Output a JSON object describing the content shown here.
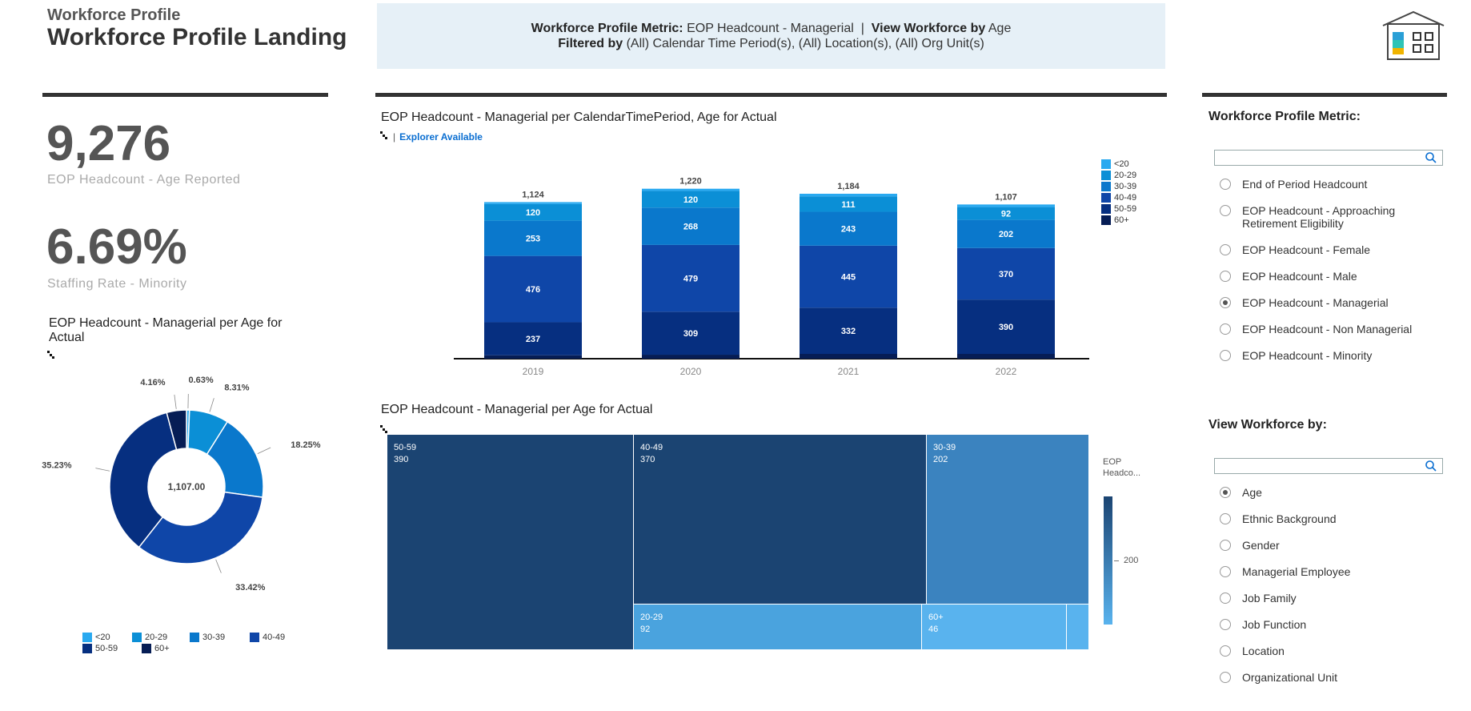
{
  "header": {
    "app_name": "Workforce Profile",
    "page_title": "Workforce Profile Landing",
    "metric_label": "Workforce Profile Metric:",
    "metric_value": "EOP Headcount - Managerial",
    "separator": "|",
    "view_label": "View Workforce by",
    "view_value": "Age",
    "filter_label": "Filtered by",
    "filter_value": "(All) Calendar Time Period(s), (All) Location(s), (All) Org Unit(s)"
  },
  "kpis": [
    {
      "value": "9,276",
      "label": "EOP Headcount - Age Reported"
    },
    {
      "value": "6.69%",
      "label": "Staffing Rate - Minority"
    }
  ],
  "colors": {
    "lt20": "#29a9f0",
    "a20_29": "#0b8fd6",
    "a30_39": "#0a78cc",
    "a40_49": "#0f46a8",
    "a50_59": "#062f80",
    "a60p": "#061d55",
    "treemap_dark": "#1b4472",
    "treemap_mid": "#3b83bf",
    "treemap_light": "#4aa3de",
    "treemap_lightest": "#59b3ee"
  },
  "donut": {
    "title": "EOP Headcount - Managerial per Age for Actual",
    "center_label": "1,107.00",
    "legend": [
      "<20",
      "20-29",
      "30-39",
      "40-49",
      "50-59",
      "60+"
    ]
  },
  "bar_chart": {
    "title": "EOP Headcount - Managerial per CalendarTimePeriod, Age for Actual",
    "explorer_separator": "|",
    "explorer_label": "Explorer Available",
    "legend": [
      "<20",
      "20-29",
      "30-39",
      "40-49",
      "50-59",
      "60+"
    ]
  },
  "treemap": {
    "title": "EOP Headcount - Managerial per Age for Actual",
    "legend_title": "EOP Headco...",
    "legend_tick": "200",
    "cells": [
      {
        "label": "50-59",
        "value": "390"
      },
      {
        "label": "40-49",
        "value": "370"
      },
      {
        "label": "30-39",
        "value": "202"
      },
      {
        "label": "20-29",
        "value": "92"
      },
      {
        "label": "60+",
        "value": "46"
      }
    ]
  },
  "right_panel": {
    "metric_label": "Workforce Profile Metric:",
    "metric_options": [
      {
        "label": "End of Period Headcount",
        "selected": false
      },
      {
        "label": "EOP Headcount - Approaching Retirement Eligibility",
        "selected": false
      },
      {
        "label": "EOP Headcount - Female",
        "selected": false
      },
      {
        "label": "EOP Headcount - Male",
        "selected": false
      },
      {
        "label": "EOP Headcount - Managerial",
        "selected": true
      },
      {
        "label": "EOP Headcount - Non Managerial",
        "selected": false
      },
      {
        "label": "EOP Headcount - Minority",
        "selected": false
      }
    ],
    "view_label": "View Workforce by:",
    "view_options": [
      {
        "label": "Age",
        "selected": true
      },
      {
        "label": "Ethnic Background",
        "selected": false
      },
      {
        "label": "Gender",
        "selected": false
      },
      {
        "label": "Managerial Employee",
        "selected": false
      },
      {
        "label": "Job Family",
        "selected": false
      },
      {
        "label": "Job Function",
        "selected": false
      },
      {
        "label": "Location",
        "selected": false
      },
      {
        "label": "Organizational Unit",
        "selected": false
      }
    ]
  },
  "chart_data": [
    {
      "type": "bar",
      "stacked": true,
      "title": "EOP Headcount - Managerial per CalendarTimePeriod, Age for Actual",
      "categories": [
        "2019",
        "2020",
        "2021",
        "2022"
      ],
      "totals": [
        1124,
        1220,
        1184,
        1107
      ],
      "series": [
        {
          "name": "<20",
          "values": [
            null,
            null,
            null,
            null
          ]
        },
        {
          "name": "20-29",
          "values": [
            120,
            120,
            111,
            92
          ]
        },
        {
          "name": "30-39",
          "values": [
            253,
            268,
            243,
            202
          ]
        },
        {
          "name": "40-49",
          "values": [
            476,
            479,
            445,
            370
          ]
        },
        {
          "name": "50-59",
          "values": [
            237,
            309,
            332,
            390
          ]
        },
        {
          "name": "60+",
          "values": [
            null,
            null,
            null,
            null
          ]
        }
      ],
      "legend_position": "top-right",
      "grid": false
    },
    {
      "type": "pie",
      "donut": true,
      "title": "EOP Headcount - Managerial per Age for Actual",
      "categories": [
        "<20",
        "20-29",
        "30-39",
        "40-49",
        "50-59",
        "60+"
      ],
      "values": [
        0.63,
        8.31,
        18.25,
        33.42,
        35.23,
        4.16
      ],
      "value_labels": [
        "0.63%",
        "8.31%",
        "18.25%",
        "33.42%",
        "35.23%",
        "4.16%"
      ],
      "center_label": "1,107.00",
      "legend_position": "bottom"
    },
    {
      "type": "treemap",
      "title": "EOP Headcount - Managerial per Age for Actual",
      "categories": [
        "50-59",
        "40-49",
        "30-39",
        "20-29",
        "60+"
      ],
      "values": [
        390,
        370,
        202,
        92,
        46
      ]
    }
  ]
}
